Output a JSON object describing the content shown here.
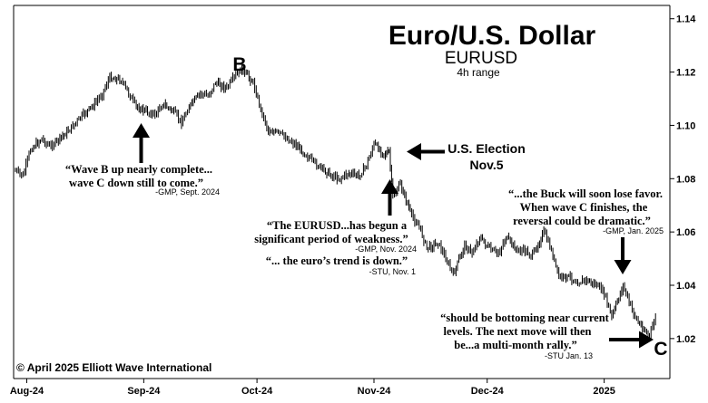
{
  "chart_data": {
    "type": "line",
    "title": "Euro/U.S. Dollar",
    "subtitle": "EURUSD",
    "range_label": "4h range",
    "copyright": "© April 2025 Elliott Wave International",
    "y_ticks": [
      "1.14",
      "1.12",
      "1.10",
      "1.08",
      "1.06",
      "1.04",
      "1.02"
    ],
    "ylim": [
      1.005,
      1.145
    ],
    "x_ticks": [
      "Aug-24",
      "Sep-24",
      "Oct-24",
      "Nov-24",
      "Dec-24",
      "2025"
    ],
    "xlim": [
      "2024-07-29",
      "2025-01-16"
    ],
    "series": [
      {
        "x": [
          "2024-07-29",
          "2024-07-31",
          "2024-08-02",
          "2024-08-05",
          "2024-08-07",
          "2024-08-09",
          "2024-08-12",
          "2024-08-14",
          "2024-08-16",
          "2024-08-19",
          "2024-08-21",
          "2024-08-23",
          "2024-08-26",
          "2024-08-28",
          "2024-08-30",
          "2024-09-02",
          "2024-09-04",
          "2024-09-06",
          "2024-09-09",
          "2024-09-11",
          "2024-09-13",
          "2024-09-16",
          "2024-09-18",
          "2024-09-20",
          "2024-09-23",
          "2024-09-25",
          "2024-09-27",
          "2024-09-30",
          "2024-10-02",
          "2024-10-04",
          "2024-10-07",
          "2024-10-09",
          "2024-10-11",
          "2024-10-14",
          "2024-10-16",
          "2024-10-18",
          "2024-10-21",
          "2024-10-23",
          "2024-10-25",
          "2024-10-28",
          "2024-10-30",
          "2024-11-01",
          "2024-11-04",
          "2024-11-05",
          "2024-11-06",
          "2024-11-08",
          "2024-11-11",
          "2024-11-13",
          "2024-11-15",
          "2024-11-18",
          "2024-11-20",
          "2024-11-22",
          "2024-11-25",
          "2024-11-27",
          "2024-11-29",
          "2024-12-02",
          "2024-12-04",
          "2024-12-06",
          "2024-12-09",
          "2024-12-11",
          "2024-12-13",
          "2024-12-16",
          "2024-12-18",
          "2024-12-20",
          "2024-12-23",
          "2024-12-25",
          "2024-12-27",
          "2024-12-30",
          "2025-01-01",
          "2025-01-03",
          "2025-01-06",
          "2025-01-08",
          "2025-01-10",
          "2025-01-13",
          "2025-01-15"
        ],
        "y": [
          1.083,
          1.081,
          1.091,
          1.095,
          1.092,
          1.094,
          1.098,
          1.101,
          1.104,
          1.108,
          1.112,
          1.118,
          1.117,
          1.112,
          1.107,
          1.105,
          1.104,
          1.108,
          1.105,
          1.101,
          1.107,
          1.112,
          1.111,
          1.116,
          1.114,
          1.118,
          1.121,
          1.116,
          1.106,
          1.098,
          1.097,
          1.095,
          1.093,
          1.089,
          1.086,
          1.084,
          1.081,
          1.08,
          1.082,
          1.081,
          1.085,
          1.093,
          1.089,
          1.09,
          1.073,
          1.078,
          1.066,
          1.062,
          1.054,
          1.056,
          1.05,
          1.044,
          1.055,
          1.052,
          1.058,
          1.053,
          1.052,
          1.058,
          1.053,
          1.053,
          1.051,
          1.06,
          1.053,
          1.043,
          1.043,
          1.041,
          1.042,
          1.04,
          1.037,
          1.028,
          1.04,
          1.032,
          1.026,
          1.021,
          1.03
        ]
      }
    ],
    "wave_labels": {
      "b": "B",
      "c": "C"
    },
    "election": {
      "line1": "U.S. Election",
      "line2": "Nov.5"
    },
    "annotations": [
      {
        "lines": [
          "“Wave B up nearly complete...",
          "wave C down still to come.”"
        ],
        "attribution": "-GMP, Sept. 2024"
      },
      {
        "lines": [
          "“The EURUSD...has begun a",
          "significant period of weakness.”"
        ],
        "attribution": "-GMP, Nov. 2024"
      },
      {
        "lines": [
          "“... the euro’s trend is down.”"
        ],
        "attribution": "-STU, Nov. 1"
      },
      {
        "lines": [
          "“...the Buck will soon lose favor.",
          "When wave C finishes, the",
          "reversal could be dramatic.”"
        ],
        "attribution": "-GMP, Jan. 2025"
      },
      {
        "lines": [
          "“should be bottoming near current",
          "levels. The next move will then",
          "be...a multi-month rally.”"
        ],
        "attribution": "-STU Jan. 13"
      }
    ]
  }
}
